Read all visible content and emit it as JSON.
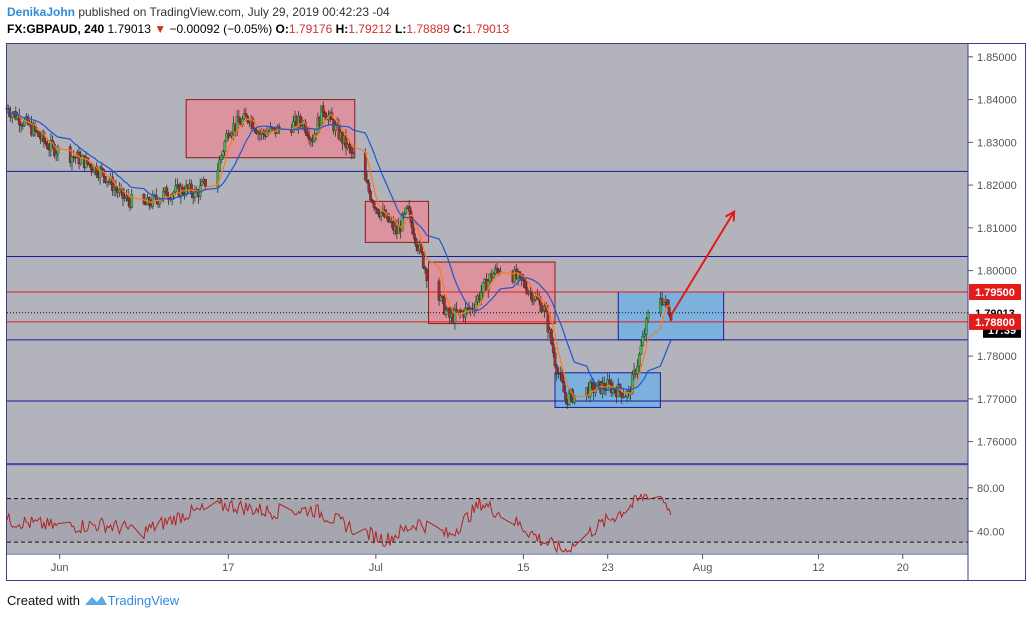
{
  "header": {
    "author": "DenikaJohn",
    "published": "published on TradingView.com, July 29, 2019 00:42:23 -04",
    "symbol": "FX:GBPAUD, 240",
    "last": "1.79013",
    "change_arrow": "▼",
    "change": "−0.00092 (−0.05%)",
    "o_label": "O:",
    "o_value": "1.79176",
    "h_label": "H:",
    "h_value": "1.79212",
    "l_label": "L:",
    "l_value": "1.78889",
    "c_label": "C:",
    "c_value": "1.79013"
  },
  "footer": {
    "created": "Created with",
    "brand": "TradingView",
    "logo_icon": "tradingview-logo-icon"
  },
  "colors": {
    "pane_bg": "#b3b3bb",
    "bull": "#4caf50",
    "bear": "#a52a2a",
    "wick": "#333333",
    "ma_fast": "#ff7a1a",
    "ma_slow": "#1e57d0",
    "level_line": "#1a1a9e",
    "red_line": "#e31b1b",
    "supply_zone": "#e88a95",
    "demand_zone": "#6fb0e6",
    "rsi": "#b22222",
    "arrow": "#e31b1b"
  },
  "chart_data": {
    "type": "candlestick",
    "symbol": "FX:GBPAUD",
    "timeframe": "240",
    "ylim": [
      1.755,
      1.853
    ],
    "y_ticks": [
      "1.85000",
      "1.84000",
      "1.83000",
      "1.82000",
      "1.81000",
      "1.80000",
      "1.79000",
      "1.78000",
      "1.77000",
      "1.76000"
    ],
    "x_ticks": [
      "Jun",
      "17",
      "Jul",
      "15",
      "23",
      "Aug",
      "12",
      "20"
    ],
    "x_range_days": [
      "2019-05-27",
      "2019-08-26"
    ],
    "x_tick_dates": [
      "2019-06-01",
      "2019-06-17",
      "2019-07-01",
      "2019-07-15",
      "2019-07-23",
      "2019-08-01",
      "2019-08-12",
      "2019-08-20"
    ],
    "close_path": [
      [
        "2019-05-27",
        1.838
      ],
      [
        "2019-05-29",
        1.834
      ],
      [
        "2019-05-31",
        1.829
      ],
      [
        "2019-06-03",
        1.826
      ],
      [
        "2019-06-05",
        1.823
      ],
      [
        "2019-06-07",
        1.817
      ],
      [
        "2019-06-09",
        1.815
      ],
      [
        "2019-06-11",
        1.818
      ],
      [
        "2019-06-13",
        1.819
      ],
      [
        "2019-06-14",
        1.818
      ],
      [
        "2019-06-16",
        1.824
      ],
      [
        "2019-06-17",
        1.833
      ],
      [
        "2019-06-19",
        1.836
      ],
      [
        "2019-06-20",
        1.832
      ],
      [
        "2019-06-22",
        1.833
      ],
      [
        "2019-06-24",
        1.835
      ],
      [
        "2019-06-25",
        1.831
      ],
      [
        "2019-06-26",
        1.838
      ],
      [
        "2019-06-27",
        1.834
      ],
      [
        "2019-06-29",
        1.826
      ],
      [
        "2019-07-01",
        1.815
      ],
      [
        "2019-07-02",
        1.812
      ],
      [
        "2019-07-03",
        1.809
      ],
      [
        "2019-07-04",
        1.814
      ],
      [
        "2019-07-06",
        1.798
      ],
      [
        "2019-07-08",
        1.789
      ],
      [
        "2019-07-10",
        1.791
      ],
      [
        "2019-07-12",
        1.799
      ],
      [
        "2019-07-13",
        1.801
      ],
      [
        "2019-07-15",
        1.797
      ],
      [
        "2019-07-17",
        1.791
      ],
      [
        "2019-07-18",
        1.779
      ],
      [
        "2019-07-19",
        1.77
      ],
      [
        "2019-07-21",
        1.772
      ],
      [
        "2019-07-23",
        1.773
      ],
      [
        "2019-07-25",
        1.771
      ],
      [
        "2019-07-26",
        1.78
      ],
      [
        "2019-07-27",
        1.791
      ],
      [
        "2019-07-28",
        1.794
      ],
      [
        "2019-07-29",
        1.7901
      ]
    ],
    "ma_fast_label": "",
    "ma_slow_label": "",
    "horizontal_levels": [
      1.8232,
      1.8033,
      1.7838,
      1.7695,
      1.7548
    ],
    "red_levels": [
      1.795,
      1.788
    ],
    "current_price": 1.79013,
    "price_labels": [
      "1.79500",
      "1.79013",
      "1.78800"
    ],
    "countdown_label": "17:39",
    "zones": [
      {
        "kind": "supply",
        "from": "2019-06-13",
        "to": "2019-06-29",
        "top": 1.84,
        "bottom": 1.8264
      },
      {
        "kind": "supply",
        "from": "2019-06-30",
        "to": "2019-07-06",
        "top": 1.8162,
        "bottom": 1.8066
      },
      {
        "kind": "supply",
        "from": "2019-07-06",
        "to": "2019-07-18",
        "top": 1.802,
        "bottom": 1.7876
      },
      {
        "kind": "demand",
        "from": "2019-07-18",
        "to": "2019-07-28",
        "top": 1.7761,
        "bottom": 1.768
      },
      {
        "kind": "demand",
        "from": "2019-07-24",
        "to": "2019-08-03",
        "top": 1.795,
        "bottom": 1.7838
      }
    ],
    "arrow": {
      "from": [
        "2019-07-29",
        1.7895
      ],
      "to": [
        "2019-08-04",
        1.8138
      ]
    },
    "rsi": {
      "ylim": [
        20,
        100
      ],
      "ticks": [
        "80.00",
        "40.00"
      ],
      "levels": [
        70,
        30
      ],
      "path": [
        [
          "2019-05-27",
          50
        ],
        [
          "2019-06-01",
          44
        ],
        [
          "2019-06-05",
          46
        ],
        [
          "2019-06-09",
          40
        ],
        [
          "2019-06-13",
          56
        ],
        [
          "2019-06-17",
          64
        ],
        [
          "2019-06-21",
          58
        ],
        [
          "2019-06-25",
          60
        ],
        [
          "2019-06-29",
          42
        ],
        [
          "2019-07-02",
          32
        ],
        [
          "2019-07-05",
          48
        ],
        [
          "2019-07-08",
          36
        ],
        [
          "2019-07-11",
          66
        ],
        [
          "2019-07-14",
          50
        ],
        [
          "2019-07-17",
          30
        ],
        [
          "2019-07-19",
          22
        ],
        [
          "2019-07-22",
          44
        ],
        [
          "2019-07-25",
          62
        ],
        [
          "2019-07-27",
          76
        ],
        [
          "2019-07-28",
          73
        ],
        [
          "2019-07-29",
          58
        ]
      ]
    }
  }
}
